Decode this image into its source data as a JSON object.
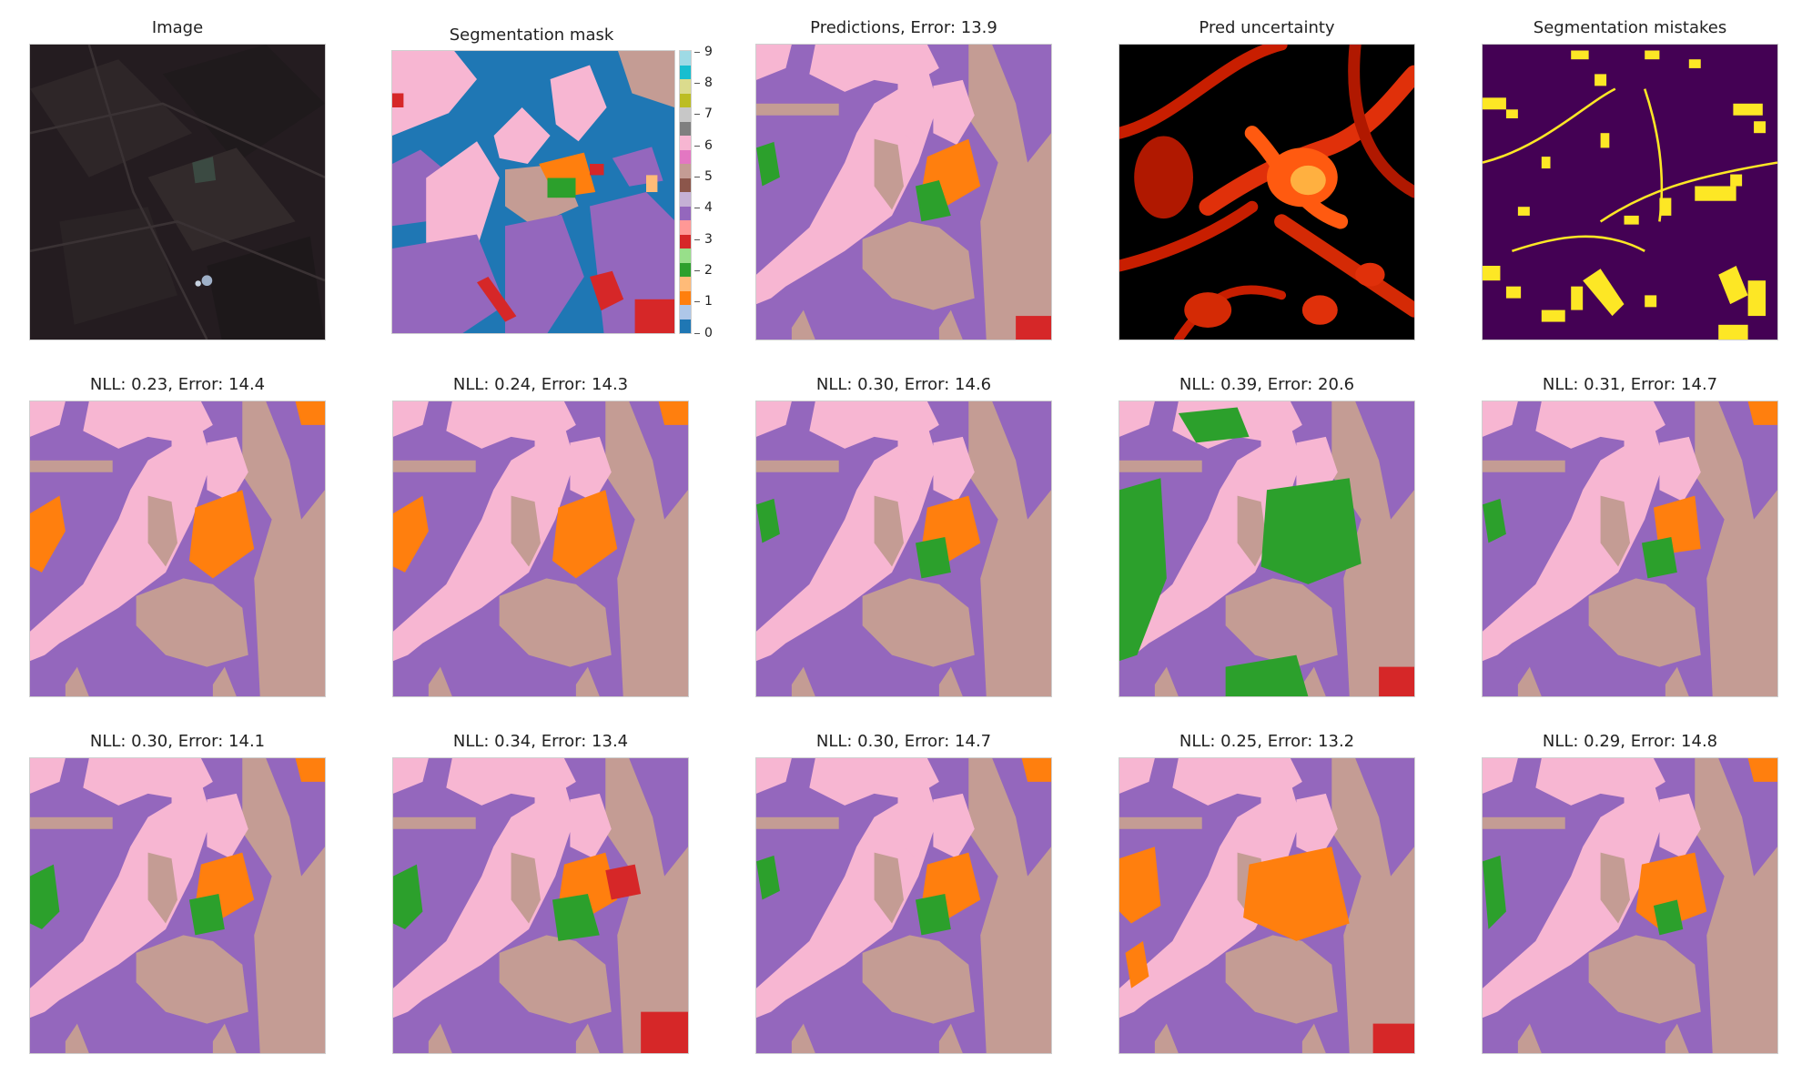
{
  "figure": {
    "row1": {
      "image_title": "Image",
      "mask_title": "Segmentation mask",
      "pred_title": "Predictions, Error: 13.9",
      "uncertainty_title": "Pred uncertainty",
      "mistakes_title": "Segmentation mistakes"
    },
    "samples": [
      "NLL: 0.23, Error: 14.4",
      "NLL: 0.24, Error: 14.3",
      "NLL: 0.30, Error: 14.6",
      "NLL: 0.39, Error: 20.6",
      "NLL: 0.31, Error: 14.7",
      "NLL: 0.30, Error: 14.1",
      "NLL: 0.34, Error: 13.4",
      "NLL: 0.30, Error: 14.7",
      "NLL: 0.25, Error: 13.2",
      "NLL: 0.29, Error: 14.8"
    ],
    "colorbar": {
      "ticks": [
        "0",
        "1",
        "2",
        "3",
        "4",
        "5",
        "6",
        "7",
        "8",
        "9"
      ],
      "colors": [
        "#1f77b4",
        "#ff7f0e",
        "#2ca02c",
        "#d62728",
        "#9467bd",
        "#8c564b",
        "#e377c2",
        "#7f7f7f",
        "#bcbd22",
        "#17becf"
      ],
      "light_colors": [
        "#aec7e8",
        "#ffbb78",
        "#98df8a",
        "#ff9896",
        "#c5b0d5",
        "#c49c94",
        "#f7b6d2",
        "#c7c7c7",
        "#dbdb8d",
        "#9edae5"
      ]
    },
    "class_colors": {
      "purple": "#9467bd",
      "pink": "#f7b6d2",
      "tan": "#c49c94",
      "orange": "#ff7f0e",
      "green": "#2ca02c",
      "red": "#d62728",
      "blue": "#1f77b4"
    }
  }
}
